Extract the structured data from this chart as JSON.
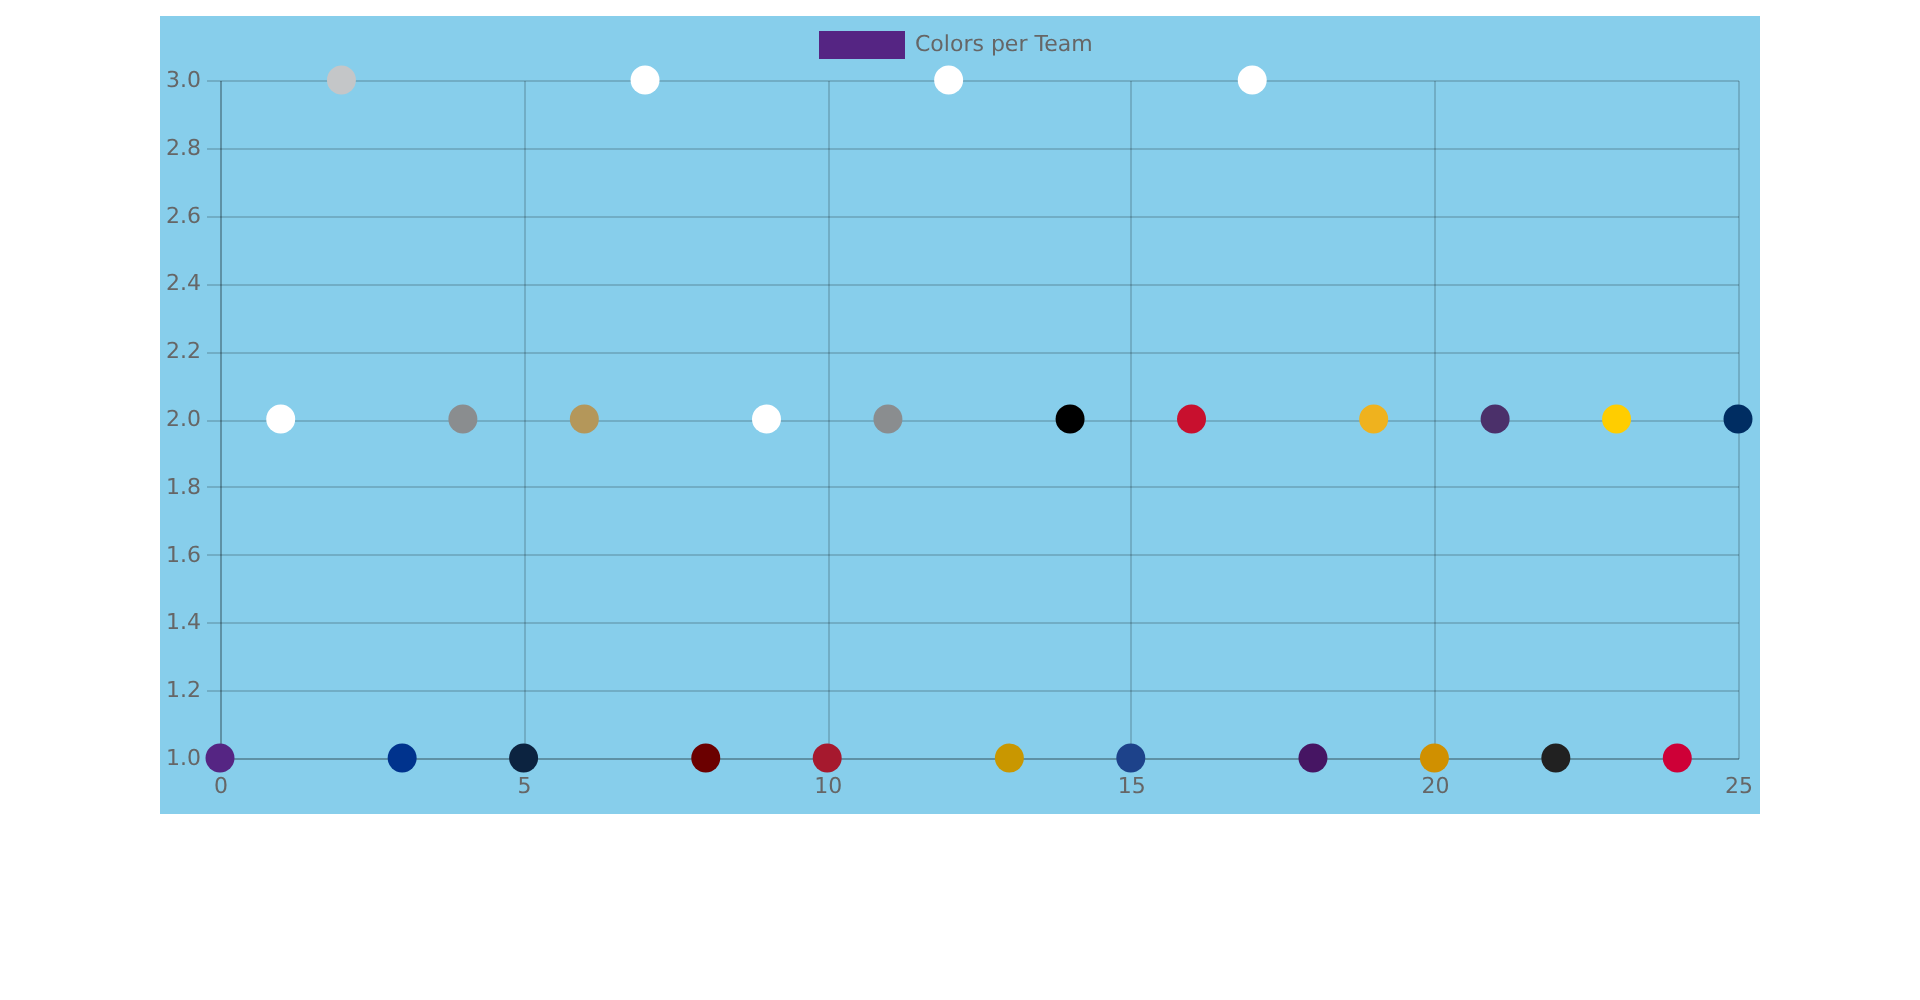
{
  "chart_data": {
    "type": "scatter",
    "x": [
      0,
      1,
      2,
      3,
      4,
      5,
      6,
      7,
      8,
      9,
      10,
      11,
      12,
      13,
      14,
      15,
      16,
      17,
      18,
      19,
      20,
      21,
      22,
      23,
      24,
      25
    ],
    "series": [
      {
        "name": "Colors per Team",
        "color": "#552583",
        "colors": [
          "#552583",
          "#ffffff",
          "#c4c6c8",
          "#00338d",
          "#8a8d8f",
          "#0c2340",
          "#b4975a",
          "#ffffff",
          "#6b0000",
          "#ffffff",
          "#a6192e",
          "#8a8d8f",
          "#ffffff",
          "#c99700",
          "#000000",
          "#1d428a",
          "#c8102e",
          "#ffffff",
          "#461563",
          "#efb21e",
          "#d09000",
          "#4b306a",
          "#212121",
          "#ffcd00",
          "#ce0037",
          "#002d62"
        ],
        "values": [
          1,
          2,
          3,
          1,
          2,
          1,
          2,
          3,
          1,
          2,
          1,
          2,
          3,
          1,
          2,
          1,
          2,
          3,
          1,
          2,
          1,
          2,
          1,
          2,
          1,
          2
        ]
      }
    ],
    "xlim": [
      0,
      25
    ],
    "ylim": [
      1,
      3
    ],
    "xticks": [
      0,
      5,
      10,
      15,
      20,
      25
    ],
    "yticks": [
      {
        "value": 1,
        "label": "1.0"
      },
      1.2,
      1.4,
      1.6,
      1.8,
      {
        "value": 2,
        "label": "2.0"
      },
      2.2,
      2.4,
      2.6,
      2.8,
      {
        "value": 3,
        "label": "3.0"
      }
    ],
    "grid": true,
    "legend": "top",
    "marker": "circle"
  }
}
